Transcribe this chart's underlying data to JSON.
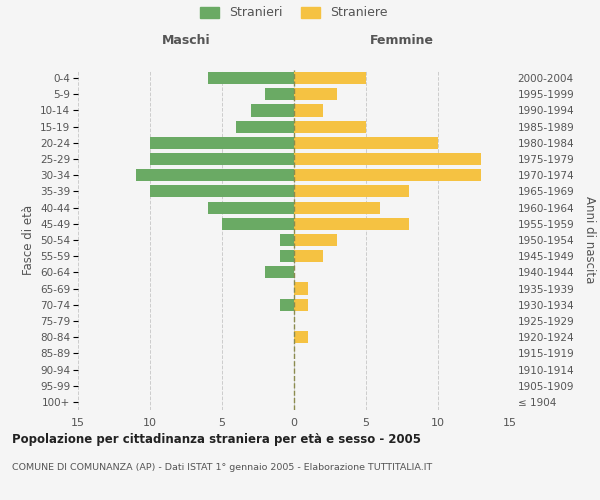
{
  "age_groups": [
    "100+",
    "95-99",
    "90-94",
    "85-89",
    "80-84",
    "75-79",
    "70-74",
    "65-69",
    "60-64",
    "55-59",
    "50-54",
    "45-49",
    "40-44",
    "35-39",
    "30-34",
    "25-29",
    "20-24",
    "15-19",
    "10-14",
    "5-9",
    "0-4"
  ],
  "birth_years": [
    "≤ 1904",
    "1905-1909",
    "1910-1914",
    "1915-1919",
    "1920-1924",
    "1925-1929",
    "1930-1934",
    "1935-1939",
    "1940-1944",
    "1945-1949",
    "1950-1954",
    "1955-1959",
    "1960-1964",
    "1965-1969",
    "1970-1974",
    "1975-1979",
    "1980-1984",
    "1985-1989",
    "1990-1994",
    "1995-1999",
    "2000-2004"
  ],
  "males": [
    0,
    0,
    0,
    0,
    0,
    0,
    1,
    0,
    2,
    1,
    1,
    5,
    6,
    10,
    11,
    10,
    10,
    4,
    3,
    2,
    6
  ],
  "females": [
    0,
    0,
    0,
    0,
    1,
    0,
    1,
    1,
    0,
    2,
    3,
    8,
    6,
    8,
    13,
    13,
    10,
    5,
    2,
    3,
    5
  ],
  "male_color": "#6aaa64",
  "female_color": "#f5c242",
  "background_color": "#f5f5f5",
  "grid_color": "#cccccc",
  "center_line_color": "#8b8b4e",
  "xlim": 15,
  "title": "Popolazione per cittadinanza straniera per età e sesso - 2005",
  "subtitle": "COMUNE DI COMUNANZA (AP) - Dati ISTAT 1° gennaio 2005 - Elaborazione TUTTITALIA.IT",
  "xlabel_left": "Maschi",
  "xlabel_right": "Femmine",
  "ylabel_left": "Fasce di età",
  "ylabel_right": "Anni di nascita",
  "legend_male": "Stranieri",
  "legend_female": "Straniere"
}
